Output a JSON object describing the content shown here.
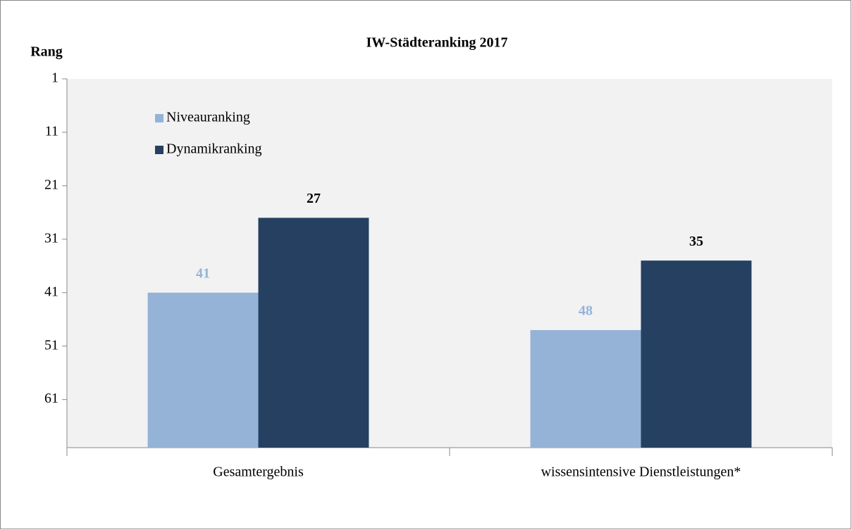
{
  "chart_data": {
    "type": "bar",
    "title": "IW-Städteranking 2017",
    "y_label": "Rang",
    "categories": [
      "Gesamtergebnis",
      "wissensintensive Dienstleistungen*"
    ],
    "series": [
      {
        "name": "Niveauranking",
        "color": "#95b3d7",
        "values": [
          41,
          48
        ]
      },
      {
        "name": "Dynamikranking",
        "color": "#254061",
        "values": [
          27,
          35
        ]
      }
    ],
    "ylim": [
      1,
      70
    ],
    "y_inverted": true,
    "yticks": [
      1,
      11,
      21,
      31,
      41,
      51,
      61
    ]
  }
}
